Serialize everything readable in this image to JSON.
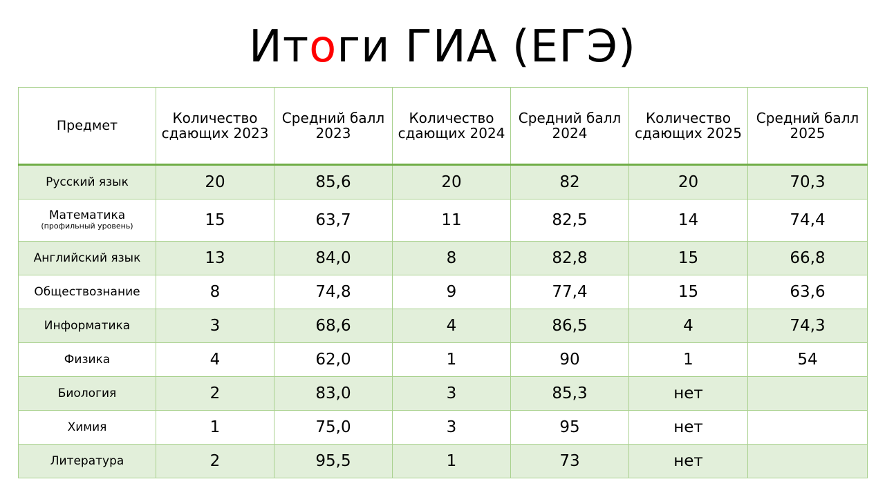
{
  "title": {
    "part1": "Ит",
    "accent": "о",
    "part2": "ги ГИА (ЕГЭ)",
    "accent_color": "#ff0000"
  },
  "colors": {
    "border": "#a9d18e",
    "header_rule": "#70ad47",
    "row_shade": "#e2efda"
  },
  "table": {
    "headers": [
      "Предмет",
      "Количество сдающих 2023",
      "Средний балл 2023",
      "Количество сдающих 2024",
      "Средний балл 2024",
      "Количество сдающих 2025",
      "Средний балл 2025"
    ],
    "rows": [
      {
        "subject": "Русский язык",
        "note": "",
        "cells": [
          "20",
          "85,6",
          "20",
          "82",
          "20",
          "70,3"
        ]
      },
      {
        "subject": "Математика",
        "note": "(профильный уровень)",
        "cells": [
          "15",
          "63,7",
          "11",
          "82,5",
          "14",
          "74,4"
        ]
      },
      {
        "subject": "Английский язык",
        "note": "",
        "cells": [
          "13",
          "84,0",
          "8",
          "82,8",
          "15",
          "66,8"
        ]
      },
      {
        "subject": "Обществознание",
        "note": "",
        "cells": [
          "8",
          "74,8",
          "9",
          "77,4",
          "15",
          "63,6"
        ]
      },
      {
        "subject": "Информатика",
        "note": "",
        "cells": [
          "3",
          "68,6",
          "4",
          "86,5",
          "4",
          "74,3"
        ]
      },
      {
        "subject": "Физика",
        "note": "",
        "cells": [
          "4",
          "62,0",
          "1",
          "90",
          "1",
          "54"
        ]
      },
      {
        "subject": "Биология",
        "note": "",
        "cells": [
          "2",
          "83,0",
          "3",
          "85,3",
          "нет",
          ""
        ]
      },
      {
        "subject": "Химия",
        "note": "",
        "cells": [
          "1",
          "75,0",
          "3",
          "95",
          "нет",
          ""
        ]
      },
      {
        "subject": "Литература",
        "note": "",
        "cells": [
          "2",
          "95,5",
          "1",
          "73",
          "нет",
          ""
        ]
      }
    ]
  }
}
